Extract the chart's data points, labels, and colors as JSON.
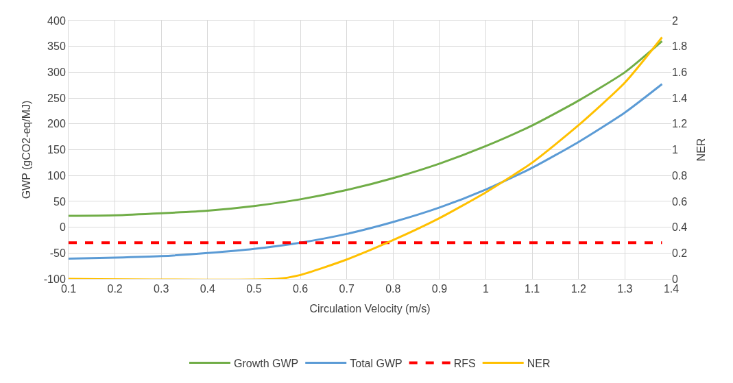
{
  "chart_data": {
    "type": "line",
    "xlabel": "Circulation Velocity (m/s)",
    "ylabel": "GWP (gCO2-eq/MJ)",
    "y2label": "NER",
    "x": [
      0.1,
      0.2,
      0.3,
      0.4,
      0.5,
      0.6,
      0.7,
      0.8,
      0.9,
      1.0,
      1.1,
      1.2,
      1.3,
      1.38
    ],
    "series": [
      {
        "name": "Growth GWP",
        "color": "#70ad47",
        "values": [
          22,
          23,
          27,
          32,
          41,
          54,
          72,
          95,
          123,
          157,
          197,
          245,
          300,
          360
        ]
      },
      {
        "name": "Total GWP",
        "color": "#5b9bd5",
        "values": [
          -61,
          -59,
          -56,
          -50,
          -42,
          -30,
          -13,
          10,
          38,
          73,
          115,
          165,
          222,
          277
        ]
      },
      {
        "name": "RFS",
        "color": "#ff0000",
        "line_style": "dashed",
        "x": [
          0.1,
          1.38
        ],
        "values": [
          -30,
          -30
        ]
      },
      {
        "name": "NER",
        "color": "#ffc000",
        "axis": "y2",
        "x": [
          0.1,
          0.55,
          0.6,
          0.7,
          0.8,
          0.9,
          1.0,
          1.1,
          1.2,
          1.3,
          1.38
        ],
        "values": [
          0,
          0,
          0.03,
          0.15,
          0.3,
          0.47,
          0.67,
          0.9,
          1.19,
          1.52,
          1.87
        ]
      }
    ],
    "xlim": [
      0.1,
      1.4
    ],
    "xticks": [
      0.1,
      0.2,
      0.3,
      0.4,
      0.5,
      0.6,
      0.7,
      0.8,
      0.9,
      1,
      1.1,
      1.2,
      1.3,
      1.4
    ],
    "ylim": [
      -100,
      400
    ],
    "yticks": [
      -100,
      -50,
      0,
      50,
      100,
      150,
      200,
      250,
      300,
      350,
      400
    ],
    "y2lim": [
      0,
      2
    ],
    "y2ticks": [
      0,
      0.2,
      0.4,
      0.6,
      0.8,
      1,
      1.2,
      1.4,
      1.6,
      1.8,
      2
    ],
    "grid": true,
    "legend": "bottom",
    "line_style": "solid",
    "marker": "none"
  }
}
